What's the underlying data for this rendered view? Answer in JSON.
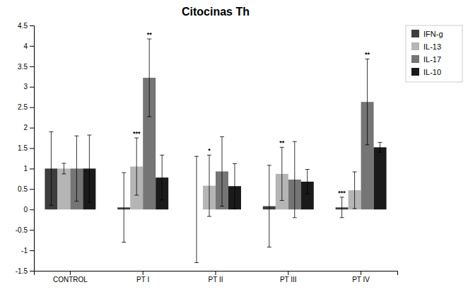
{
  "chart_data": {
    "type": "bar",
    "title": "Citocinas Th",
    "categories": [
      "CONTROL",
      "PT I",
      "PT II",
      "PT III",
      "PT IV"
    ],
    "series": [
      {
        "name": "IFN-g",
        "color": "#3d3d3d",
        "values": [
          1.0,
          0.05,
          0.0,
          0.08,
          0.05
        ],
        "errors": [
          0.9,
          0.85,
          1.3,
          1.0,
          0.25
        ],
        "significance": [
          null,
          null,
          null,
          null,
          "***"
        ]
      },
      {
        "name": "IL-13",
        "color": "#b5b5b5",
        "values": [
          1.0,
          1.05,
          0.58,
          0.87,
          0.47
        ],
        "errors": [
          0.13,
          0.7,
          0.75,
          0.65,
          0.45
        ],
        "significance": [
          null,
          "***",
          "*",
          "**",
          null
        ]
      },
      {
        "name": "IL-17",
        "color": "#757575",
        "values": [
          1.0,
          3.22,
          0.93,
          0.73,
          2.63
        ],
        "errors": [
          0.8,
          0.95,
          0.85,
          0.93,
          1.05
        ],
        "significance": [
          null,
          "**",
          null,
          null,
          "**"
        ]
      },
      {
        "name": "IL-10",
        "color": "#1a1a1a",
        "values": [
          1.0,
          0.78,
          0.57,
          0.68,
          1.52
        ],
        "errors": [
          0.82,
          0.55,
          0.55,
          0.3,
          0.12
        ],
        "significance": [
          null,
          null,
          null,
          null,
          null
        ]
      }
    ],
    "ylim": [
      -1.5,
      4.5
    ],
    "yticks": [
      -1.5,
      -1.0,
      -0.5,
      0,
      0.5,
      1.0,
      1.5,
      2.0,
      2.5,
      3.0,
      3.5,
      4.0,
      4.5
    ],
    "grid": false,
    "legend": "upper right"
  }
}
